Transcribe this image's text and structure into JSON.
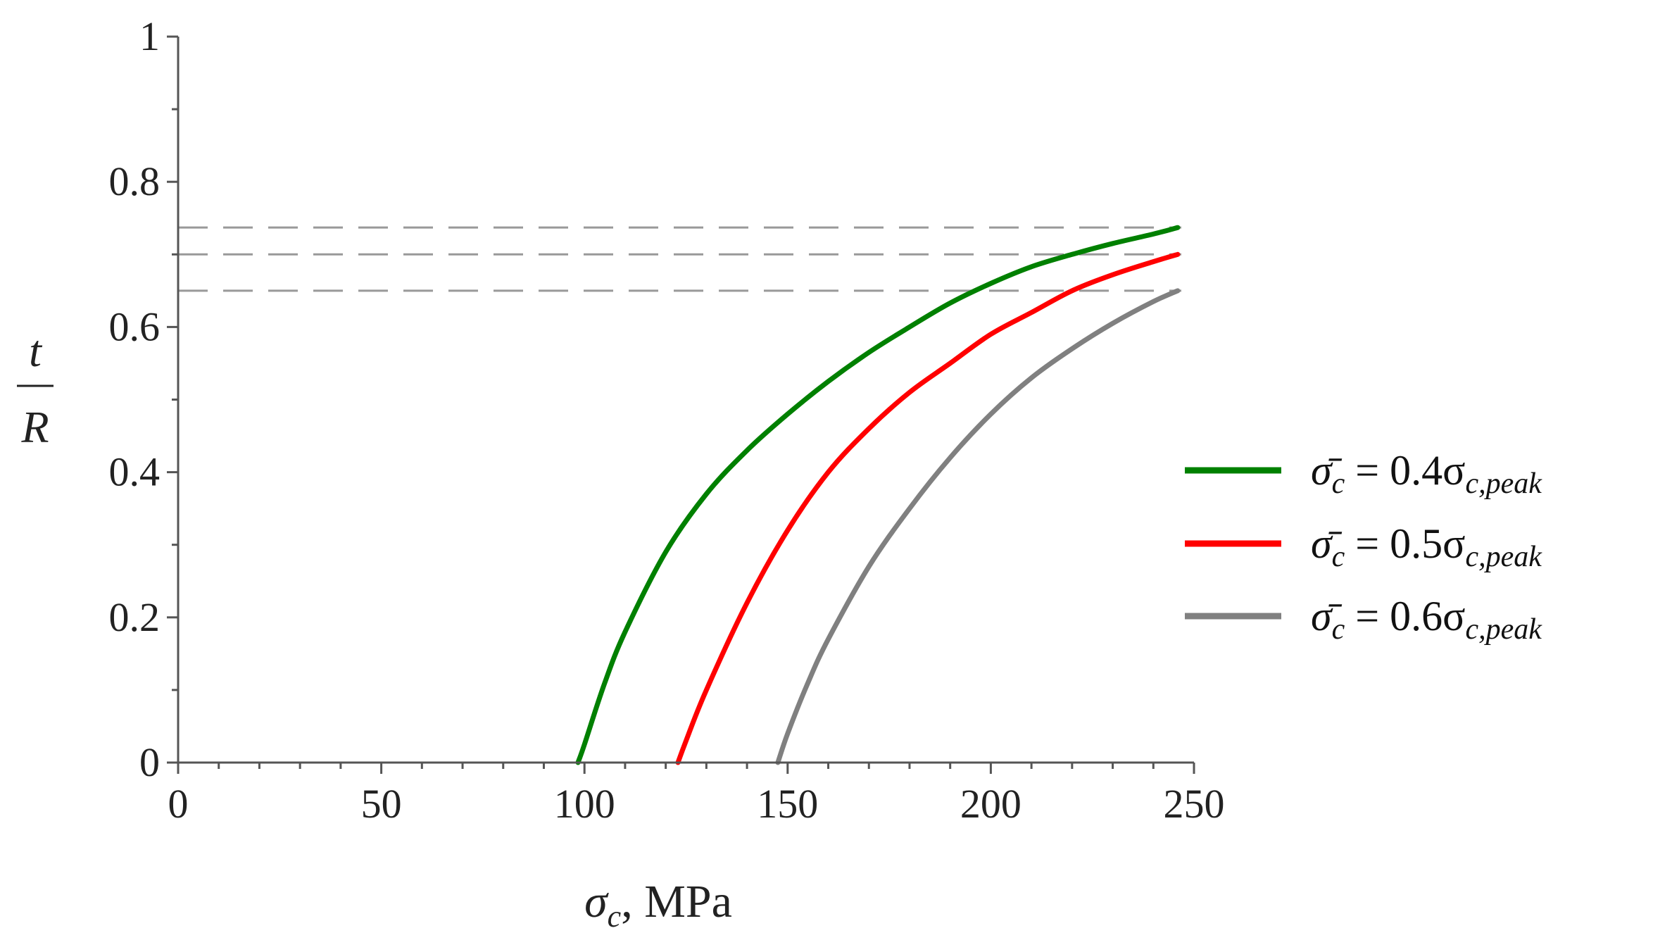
{
  "chart_data": {
    "type": "line",
    "title": "",
    "xlabel": {
      "symbol": "σ",
      "subscript": "c",
      "unit": ", MPa"
    },
    "ylabel": {
      "numerator": "t",
      "denominator": "R"
    },
    "xlim": [
      0,
      250
    ],
    "ylim": [
      0,
      1
    ],
    "xticks": [
      0,
      50,
      100,
      150,
      200,
      250
    ],
    "xtick_labels": [
      "0",
      "50",
      "100",
      "150",
      "200",
      "250"
    ],
    "yticks": [
      0,
      0.2,
      0.4,
      0.6,
      0.8,
      1
    ],
    "ytick_labels": [
      "0",
      "0.2",
      "0.4",
      "0.6",
      "0.8",
      "1"
    ],
    "grid": false,
    "legend_position": "right",
    "reference_lines": [
      {
        "type": "horizontal-dashed",
        "y": 0.737,
        "color": "#999999"
      },
      {
        "type": "horizontal-dashed",
        "y": 0.7,
        "color": "#999999"
      },
      {
        "type": "horizontal-dashed",
        "y": 0.65,
        "color": "#999999"
      }
    ],
    "series": [
      {
        "legend": {
          "symbol": "σ̄",
          "subscript": "c",
          "rhs": " = 0.4σ",
          "rhs_subscript": "c,peak"
        },
        "color": "#008000",
        "x": [
          98.4,
          100,
          105,
          110,
          120,
          130,
          140,
          150,
          160,
          170,
          180,
          190,
          200,
          210,
          220,
          230,
          240,
          246
        ],
        "y": [
          0,
          0.025,
          0.11,
          0.18,
          0.29,
          0.37,
          0.43,
          0.48,
          0.525,
          0.565,
          0.6,
          0.633,
          0.66,
          0.683,
          0.7,
          0.715,
          0.728,
          0.737
        ]
      },
      {
        "legend": {
          "symbol": "σ̄",
          "subscript": "c",
          "rhs": " = 0.5σ",
          "rhs_subscript": "c,peak"
        },
        "color": "#ff0000",
        "x": [
          123,
          125,
          130,
          140,
          150,
          160,
          170,
          180,
          190,
          200,
          210,
          220,
          230,
          240,
          246
        ],
        "y": [
          0,
          0.03,
          0.1,
          0.22,
          0.32,
          0.4,
          0.46,
          0.51,
          0.55,
          0.59,
          0.62,
          0.65,
          0.672,
          0.69,
          0.7
        ]
      },
      {
        "legend": {
          "symbol": "σ̄",
          "subscript": "c",
          "rhs": " = 0.6σ",
          "rhs_subscript": "c,peak"
        },
        "color": "#808080",
        "x": [
          147.6,
          150,
          155,
          160,
          170,
          180,
          190,
          200,
          210,
          220,
          230,
          240,
          246
        ],
        "y": [
          0,
          0.04,
          0.11,
          0.17,
          0.27,
          0.35,
          0.42,
          0.48,
          0.53,
          0.57,
          0.605,
          0.635,
          0.65
        ]
      }
    ]
  }
}
